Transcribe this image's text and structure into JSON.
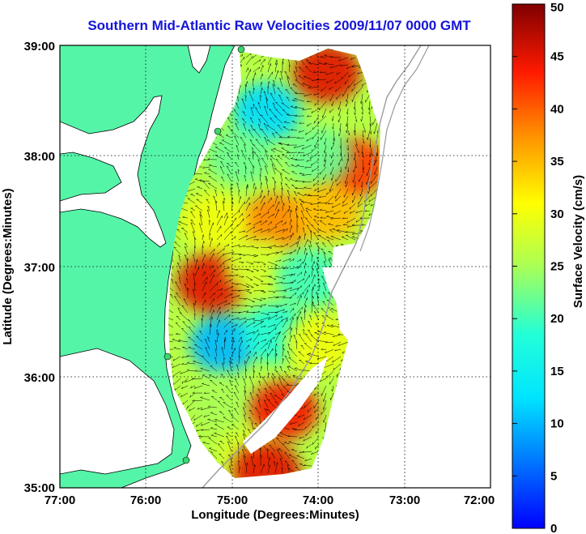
{
  "title": "Southern Mid-Atlantic Raw Velocities 2009/11/07 0000 GMT",
  "xlabel": "Longitude (Degrees:Minutes)",
  "ylabel": "Latitude (Degrees:Minutes)",
  "colorbar_label": "Surface Velocity (cm/s)",
  "x_ticks": [
    "77:00",
    "76:00",
    "75:00",
    "74:00",
    "73:00",
    "72:00"
  ],
  "y_ticks": [
    "39:00",
    "38:00",
    "37:00",
    "36:00",
    "35:00"
  ],
  "colorbar_ticks": [
    "0",
    "5",
    "10",
    "15",
    "20",
    "25",
    "30",
    "35",
    "40",
    "45",
    "50"
  ],
  "colors": {
    "land": "#55f5a8",
    "title": "#1414d8",
    "coastline": "#000000",
    "shelf_contour": "#9a9a9a"
  },
  "chart_data": {
    "type": "heatmap",
    "title": "Southern Mid-Atlantic Raw Velocities 2009/11/07 0000 GMT",
    "xlabel": "Longitude (Degrees:Minutes)",
    "ylabel": "Latitude (Degrees:Minutes)",
    "xlim": [
      -77.0,
      -72.0
    ],
    "ylim": [
      35.0,
      39.0
    ],
    "grid": true,
    "colorbar": {
      "label": "Surface Velocity (cm/s)",
      "range": [
        0,
        50
      ],
      "colormap": "jet"
    },
    "velocity_regions": [
      {
        "lon": -73.9,
        "lat": 38.75,
        "speed": 45
      },
      {
        "lon": -73.6,
        "lat": 37.9,
        "speed": 42
      },
      {
        "lon": -74.6,
        "lat": 38.4,
        "speed": 12
      },
      {
        "lon": -74.9,
        "lat": 38.0,
        "speed": 22
      },
      {
        "lon": -74.0,
        "lat": 38.0,
        "speed": 22
      },
      {
        "lon": -74.5,
        "lat": 37.4,
        "speed": 38
      },
      {
        "lon": -73.9,
        "lat": 37.5,
        "speed": 35
      },
      {
        "lon": -75.2,
        "lat": 37.4,
        "speed": 30
      },
      {
        "lon": -75.25,
        "lat": 36.85,
        "speed": 45
      },
      {
        "lon": -74.7,
        "lat": 37.0,
        "speed": 28
      },
      {
        "lon": -74.1,
        "lat": 36.9,
        "speed": 20
      },
      {
        "lon": -75.1,
        "lat": 36.3,
        "speed": 10
      },
      {
        "lon": -74.5,
        "lat": 36.4,
        "speed": 18
      },
      {
        "lon": -74.0,
        "lat": 36.3,
        "speed": 30
      },
      {
        "lon": -75.1,
        "lat": 35.8,
        "speed": 25
      },
      {
        "lon": -74.4,
        "lat": 35.7,
        "speed": 44
      },
      {
        "lon": -74.8,
        "lat": 35.3,
        "speed": 28
      },
      {
        "lon": -74.6,
        "lat": 35.15,
        "speed": 45
      }
    ]
  }
}
